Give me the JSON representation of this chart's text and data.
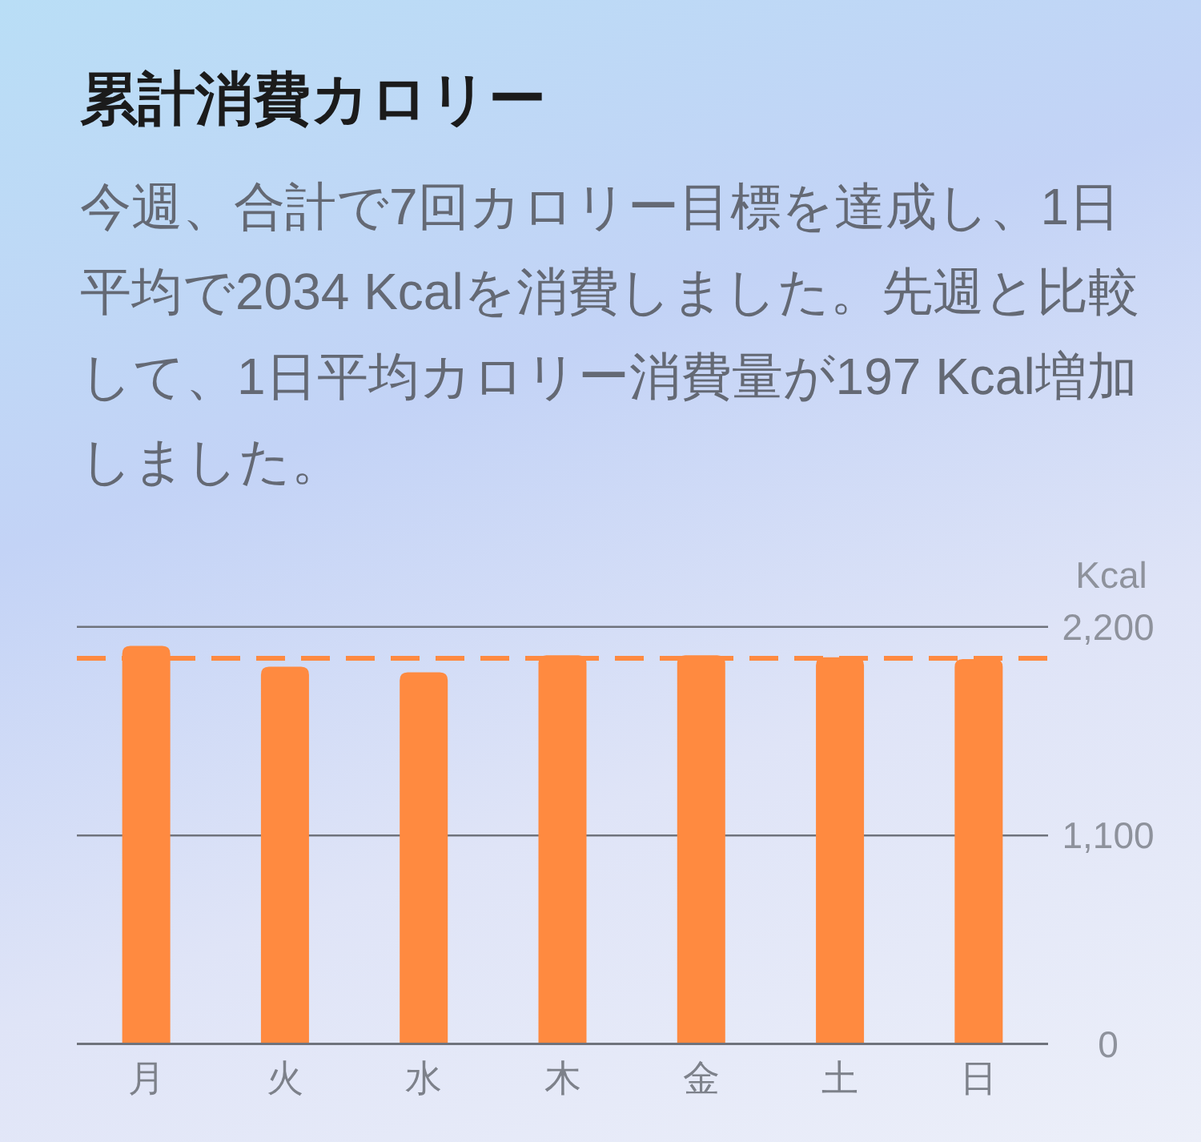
{
  "chart_data": {
    "type": "bar",
    "title": "累計消費カロリー",
    "subtitle": "今週、合計で7回カロリー目標を達成し、1日平均で2034 Kcalを消費しました。先週と比較して、1日平均カロリー消費量が197 Kcal増加しました。",
    "ylabel": "Kcal",
    "categories": [
      "月",
      "火",
      "水",
      "木",
      "金",
      "土",
      "日"
    ],
    "values": [
      2100,
      1990,
      1960,
      2050,
      2050,
      2040,
      2030
    ],
    "color": "#ff8a40",
    "ylim": [
      0,
      2200
    ],
    "yticks": [
      0,
      {
        "value": 1100,
        "label": "1,100"
      },
      {
        "value": 2200,
        "label": "2,200"
      }
    ],
    "grid": "y",
    "ref_lines": [
      {
        "axis": "y",
        "value": 2034,
        "color": "#ff8a40",
        "line_style": "dashed"
      }
    ]
  }
}
